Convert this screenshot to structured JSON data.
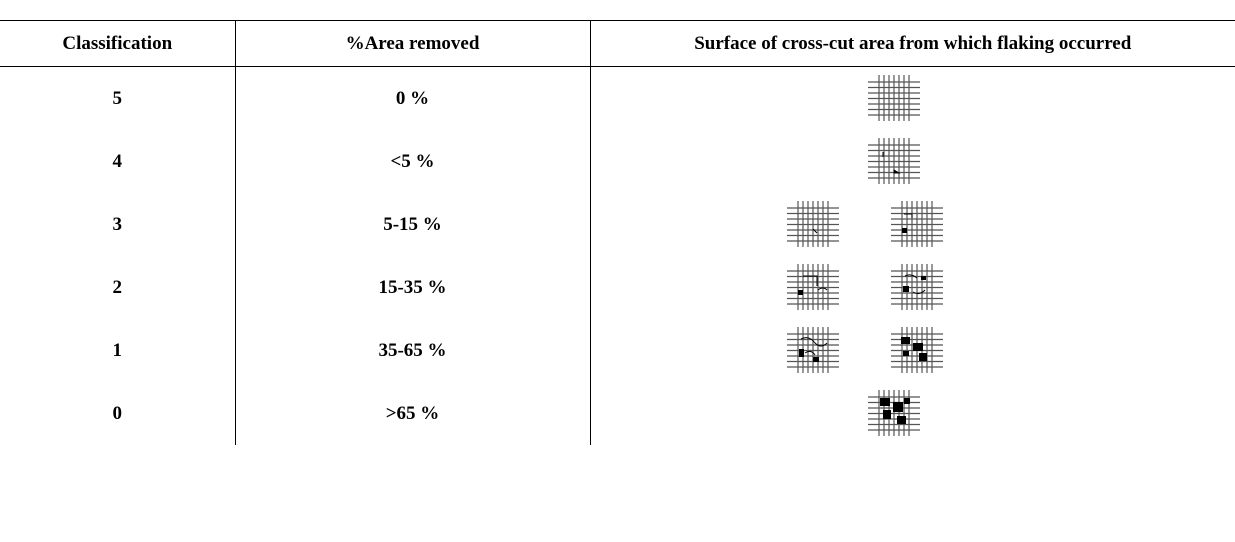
{
  "table": {
    "header": [
      "Classification",
      "%Area removed",
      "Surface of cross-cut area from which flaking occurred"
    ],
    "rows": [
      [
        "5",
        "0 %"
      ],
      [
        "4",
        "<5 %"
      ],
      [
        "3",
        "5-15 %"
      ],
      [
        "2",
        "15-35 %"
      ],
      [
        "1",
        "35-65 %"
      ],
      [
        "0",
        ">65 %"
      ]
    ]
  }
}
